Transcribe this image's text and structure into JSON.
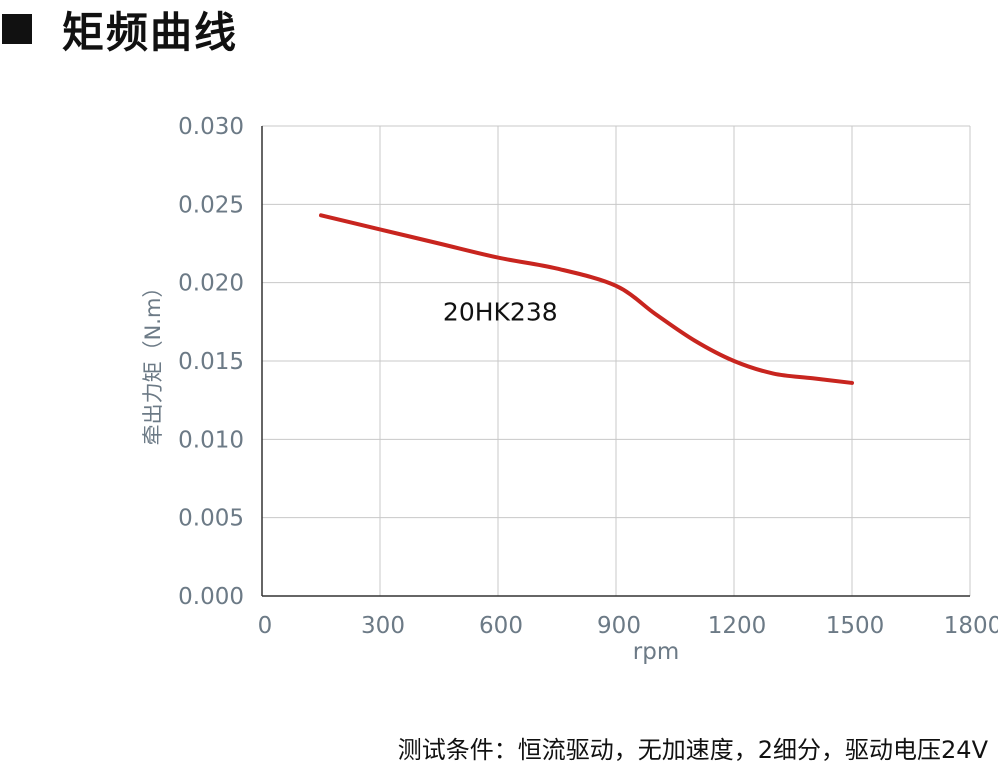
{
  "page": {
    "title": "矩频曲线",
    "footer_note": "测试条件：恒流驱动，无加速度，2细分，驱动电压24V"
  },
  "chart_data": {
    "type": "line",
    "title": "",
    "xlabel": "rpm",
    "ylabel": "牵出力矩（N.m）",
    "xlim": [
      0,
      1800
    ],
    "ylim": [
      0,
      0.03
    ],
    "x_ticks": [
      "0",
      "300",
      "600",
      "900",
      "1200",
      "1500",
      "1800"
    ],
    "y_ticks": [
      "0.000",
      "0.005",
      "0.010",
      "0.015",
      "0.020",
      "0.025",
      "0.030"
    ],
    "grid": true,
    "series": [
      {
        "name": "20HK238",
        "color": "#c8251f",
        "x": [
          150,
          300,
          450,
          600,
          750,
          900,
          1000,
          1100,
          1200,
          1300,
          1400,
          1500
        ],
        "y": [
          0.0243,
          0.0234,
          0.0225,
          0.0216,
          0.0209,
          0.0198,
          0.018,
          0.0163,
          0.015,
          0.0142,
          0.0139,
          0.0136
        ]
      }
    ],
    "colors": {
      "axis": "#333333",
      "grid": "#c8c8c8",
      "tick_label": "#6c7a86",
      "axis_label": "#6c7a86",
      "annotation": "#111111"
    }
  }
}
